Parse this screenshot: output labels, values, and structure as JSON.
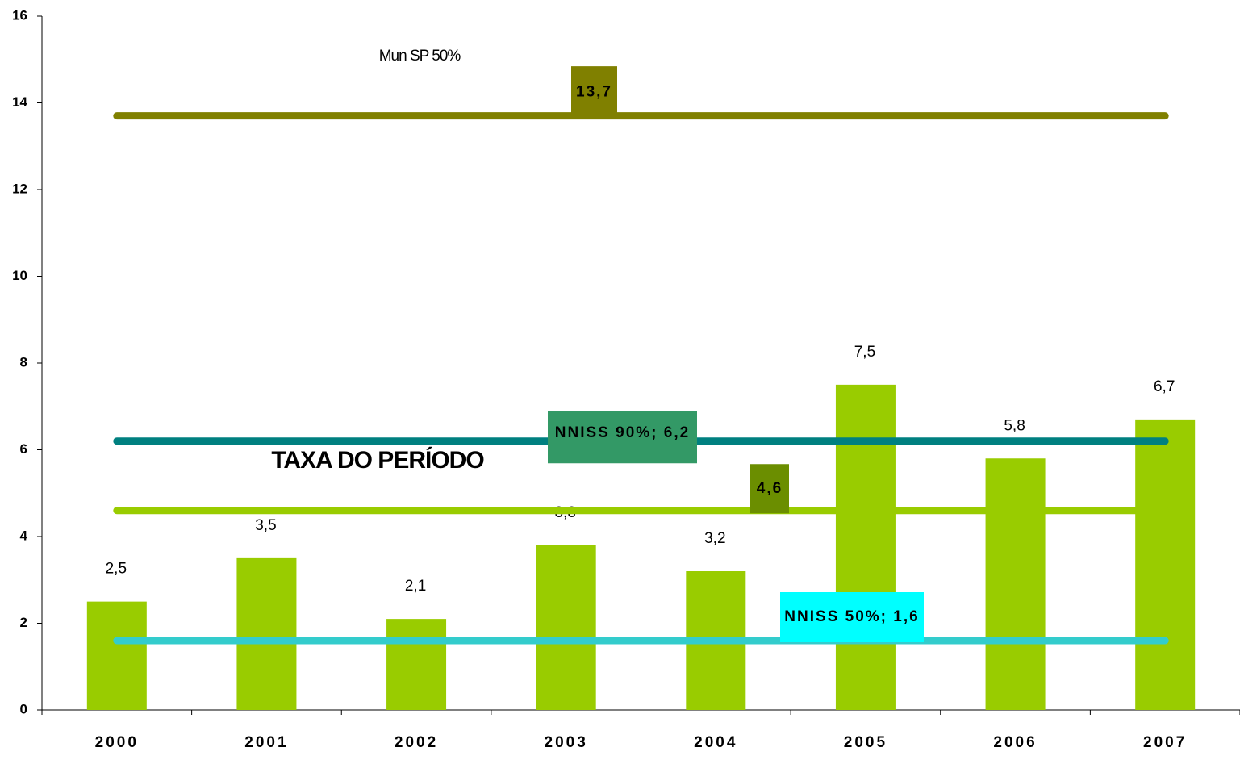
{
  "chart_data": {
    "type": "bar",
    "categories": [
      "2000",
      "2001",
      "2002",
      "2003",
      "2004",
      "2005",
      "2006",
      "2007"
    ],
    "values": [
      2.5,
      3.5,
      2.1,
      3.8,
      3.2,
      7.5,
      5.8,
      6.7
    ],
    "value_labels": [
      "2,5",
      "3,5",
      "2,1",
      "3,8",
      "3,2",
      "7,5",
      "5,8",
      "6,7"
    ],
    "color": "#99cc00",
    "ylim": [
      0,
      16
    ],
    "yticks": [
      0,
      2,
      4,
      6,
      8,
      10,
      12,
      14,
      16
    ],
    "reference_lines": [
      {
        "name": "Mun SP 50%",
        "value": 13.7,
        "label": "13,7",
        "color": "#808000"
      },
      {
        "value": 6.2,
        "label": "NNISS 90%; 6,2",
        "color": "#008080"
      },
      {
        "name": "TAXA DO PERÍODO",
        "value": 4.6,
        "label": "4,6",
        "color": "#99cc00"
      },
      {
        "value": 1.6,
        "label": "NNISS 50%; 1,6",
        "color": "#33cccc"
      }
    ]
  }
}
